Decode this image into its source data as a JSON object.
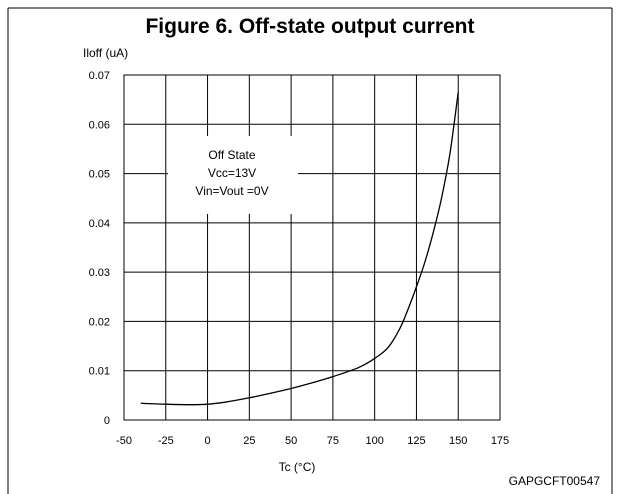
{
  "chart_data": {
    "type": "line",
    "title": "Figure 6. Off-state output current",
    "ylabel": "Iloff (uA)",
    "xlabel": "Tc (°C)",
    "xlim": [
      -50,
      175
    ],
    "ylim": [
      0,
      0.07
    ],
    "x_ticks": [
      "-50",
      "-25",
      "0",
      "25",
      "50",
      "75",
      "100",
      "125",
      "150",
      "175"
    ],
    "y_ticks": [
      "0",
      "0.01",
      "0.02",
      "0.03",
      "0.04",
      "0.05",
      "0.06",
      "0.07"
    ],
    "grid": true,
    "annotation": [
      "Off State",
      "Vcc=13V",
      "Vin=Vout =0V"
    ],
    "code": "GAPGCFT00547",
    "series": [
      {
        "x": [
          -40,
          -25,
          -10,
          0,
          10,
          25,
          40,
          50,
          60,
          75,
          90,
          100,
          108,
          115,
          120,
          125,
          130,
          135,
          140,
          145,
          150
        ],
        "y": [
          0.0034,
          0.0032,
          0.0031,
          0.0032,
          0.0036,
          0.0045,
          0.0056,
          0.0064,
          0.0073,
          0.0088,
          0.0106,
          0.0125,
          0.0147,
          0.0185,
          0.0225,
          0.027,
          0.032,
          0.038,
          0.045,
          0.054,
          0.0665
        ]
      }
    ]
  }
}
